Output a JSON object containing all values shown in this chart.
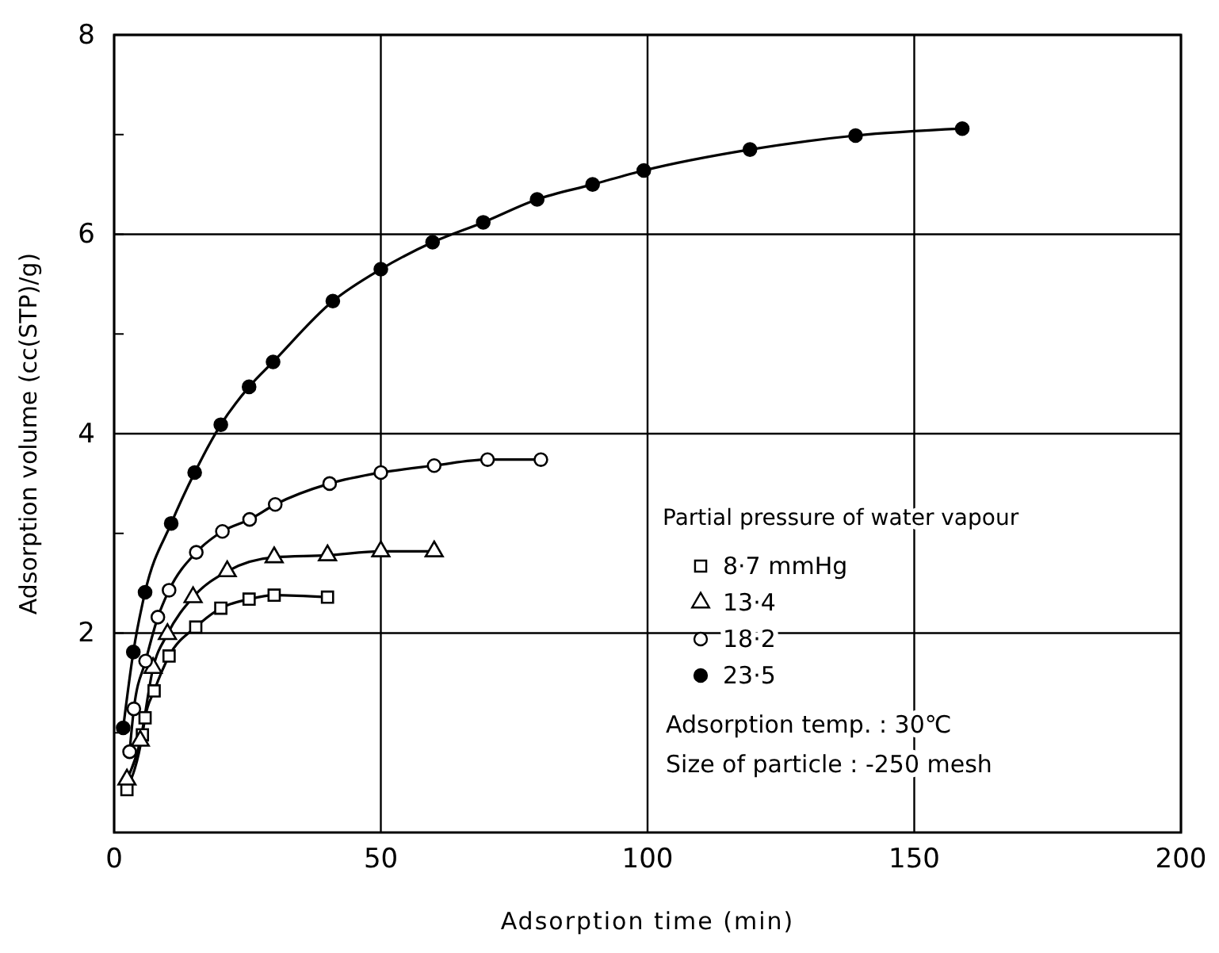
{
  "chart_data": {
    "type": "line",
    "xlabel": "Adsorption time  (min)",
    "ylabel": "Adsorption volume (cc(STP)/g)",
    "legend_title": "Partial pressure of water vapour",
    "xlim": [
      0,
      200
    ],
    "xticks": [
      0,
      50,
      100,
      150,
      200
    ],
    "ylim": [
      0,
      8
    ],
    "yticks": [
      {
        "value": 1,
        "label": null
      },
      2,
      {
        "value": 3,
        "label": null
      },
      4,
      {
        "value": 5,
        "label": null
      },
      6,
      {
        "value": 7,
        "label": null
      },
      8
    ],
    "grid": true,
    "legend": "right",
    "line_style": "solid",
    "annotations": [
      "Adsorption temp. : 30℃",
      "Size of particle : -250 mesh"
    ],
    "series": [
      {
        "name": "8·7 mmHg",
        "color": "#000000",
        "marker": "square",
        "x": [
          2.4,
          5.3,
          5.8,
          7.5,
          10.3,
          15.3,
          20,
          25.3,
          30,
          40
        ],
        "values": [
          0.43,
          0.98,
          1.15,
          1.42,
          1.77,
          2.06,
          2.25,
          2.34,
          2.38,
          2.36
        ]
      },
      {
        "name": "13·4",
        "color": "#000000",
        "marker": "triangle",
        "x": [
          2.4,
          4.9,
          7.3,
          10,
          14.8,
          21.2,
          30,
          40,
          50,
          60
        ],
        "values": [
          0.53,
          0.92,
          1.65,
          1.99,
          2.36,
          2.62,
          2.76,
          2.78,
          2.82,
          2.82
        ]
      },
      {
        "name": "18·2",
        "color": "#000000",
        "marker": "circle",
        "x": [
          2.9,
          3.7,
          5.9,
          8.2,
          10.3,
          15.4,
          20.3,
          25.4,
          30.2,
          40.4,
          50,
          60,
          70,
          80
        ],
        "values": [
          0.81,
          1.24,
          1.72,
          2.16,
          2.43,
          2.81,
          3.02,
          3.14,
          3.29,
          3.5,
          3.61,
          3.68,
          3.74,
          3.74
        ]
      },
      {
        "name": "23·5",
        "color": "#000000",
        "marker": "circle",
        "x": [
          1.7,
          3.6,
          5.8,
          10.7,
          15.1,
          20,
          25.3,
          29.8,
          41,
          50,
          59.7,
          69.2,
          79.3,
          89.7,
          99.3,
          119.2,
          139,
          159
        ],
        "values": [
          1.05,
          1.81,
          2.41,
          3.1,
          3.61,
          4.09,
          4.47,
          4.72,
          5.33,
          5.65,
          5.92,
          6.12,
          6.35,
          6.5,
          6.64,
          6.85,
          6.99,
          7.06
        ]
      }
    ]
  }
}
